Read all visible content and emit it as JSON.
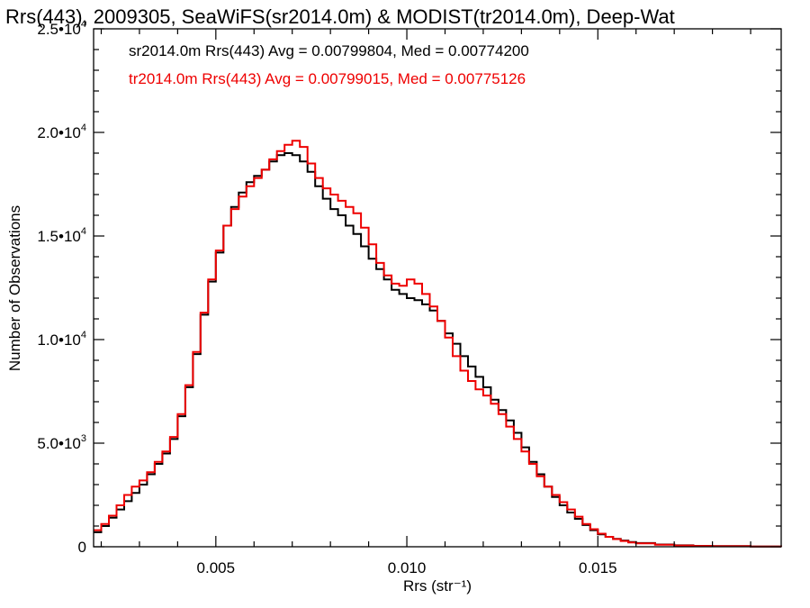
{
  "chart_data": {
    "type": "line",
    "step": true,
    "title": "Rrs(443), 2009305, SeaWiFS(sr2014.0m) & MODIST(tr2014.0m), Deep-Wat",
    "xlabel": "Rrs (str⁻¹)",
    "ylabel": "Number of Observations",
    "xlim": [
      0.0018,
      0.0198
    ],
    "ylim": [
      0,
      25000
    ],
    "x_ticks": [
      {
        "value": 0.005,
        "label": "0.005"
      },
      {
        "value": 0.01,
        "label": "0.010"
      },
      {
        "value": 0.015,
        "label": "0.015"
      }
    ],
    "y_ticks": [
      {
        "value": 0,
        "mantissa": "0",
        "exponent": ""
      },
      {
        "value": 5000,
        "mantissa": "5.0•10",
        "exponent": "3"
      },
      {
        "value": 10000,
        "mantissa": "1.0•10",
        "exponent": "4"
      },
      {
        "value": 15000,
        "mantissa": "1.5•10",
        "exponent": "4"
      },
      {
        "value": 20000,
        "mantissa": "2.0•10",
        "exponent": "4"
      },
      {
        "value": 25000,
        "mantissa": "2.5•10",
        "exponent": "4"
      }
    ],
    "annotations": [
      {
        "text": "sr2014.0m Rrs(443) Avg = 0.00799804, Med = 0.00774200",
        "color": "#000000"
      },
      {
        "text": "tr2014.0m Rrs(443) Avg = 0.00799015, Med = 0.00775126",
        "color": "#ee0000"
      }
    ],
    "series": [
      {
        "color": "#000000",
        "x": [
          0.0018,
          0.002,
          0.0022,
          0.0024,
          0.0026,
          0.0028,
          0.003,
          0.0032,
          0.0034,
          0.0036,
          0.0038,
          0.004,
          0.0042,
          0.0044,
          0.0046,
          0.0048,
          0.005,
          0.0052,
          0.0054,
          0.0056,
          0.0058,
          0.006,
          0.0062,
          0.0064,
          0.0066,
          0.0068,
          0.007,
          0.0072,
          0.0074,
          0.0076,
          0.0078,
          0.008,
          0.0082,
          0.0084,
          0.0086,
          0.0088,
          0.009,
          0.0092,
          0.0094,
          0.0096,
          0.0098,
          0.01,
          0.0102,
          0.0104,
          0.0106,
          0.0108,
          0.011,
          0.0112,
          0.0114,
          0.0116,
          0.0118,
          0.012,
          0.0122,
          0.0124,
          0.0126,
          0.0128,
          0.013,
          0.0132,
          0.0134,
          0.0136,
          0.0138,
          0.014,
          0.0142,
          0.0144,
          0.0146,
          0.0148,
          0.015,
          0.0152,
          0.0154,
          0.0156,
          0.0158,
          0.016,
          0.0165,
          0.017,
          0.0175,
          0.018,
          0.019,
          0.0198
        ],
        "values": [
          700,
          1000,
          1400,
          1800,
          2200,
          2600,
          3000,
          3500,
          4000,
          4500,
          5200,
          6300,
          7700,
          9300,
          11200,
          12800,
          14200,
          15500,
          16400,
          17100,
          17600,
          17900,
          18200,
          18600,
          18900,
          19000,
          18900,
          18600,
          18100,
          17400,
          16800,
          16300,
          16000,
          15500,
          15100,
          14500,
          13900,
          13400,
          12900,
          12400,
          12200,
          12000,
          11900,
          11700,
          11400,
          10900,
          10300,
          9800,
          9200,
          8700,
          8200,
          7700,
          7100,
          6600,
          6100,
          5500,
          4800,
          4100,
          3500,
          2900,
          2400,
          2000,
          1650,
          1350,
          1050,
          800,
          600,
          480,
          380,
          300,
          230,
          180,
          110,
          70,
          45,
          30,
          15,
          10
        ]
      },
      {
        "color": "#ee0000",
        "x": [
          0.0018,
          0.002,
          0.0022,
          0.0024,
          0.0026,
          0.0028,
          0.003,
          0.0032,
          0.0034,
          0.0036,
          0.0038,
          0.004,
          0.0042,
          0.0044,
          0.0046,
          0.0048,
          0.005,
          0.0052,
          0.0054,
          0.0056,
          0.0058,
          0.006,
          0.0062,
          0.0064,
          0.0066,
          0.0068,
          0.007,
          0.0072,
          0.0074,
          0.0076,
          0.0078,
          0.008,
          0.0082,
          0.0084,
          0.0086,
          0.0088,
          0.009,
          0.0092,
          0.0094,
          0.0096,
          0.0098,
          0.01,
          0.0102,
          0.0104,
          0.0106,
          0.0108,
          0.011,
          0.0112,
          0.0114,
          0.0116,
          0.0118,
          0.012,
          0.0122,
          0.0124,
          0.0126,
          0.0128,
          0.013,
          0.0132,
          0.0134,
          0.0136,
          0.0138,
          0.014,
          0.0142,
          0.0144,
          0.0146,
          0.0148,
          0.015,
          0.0152,
          0.0154,
          0.0156,
          0.0158,
          0.016,
          0.0165,
          0.017,
          0.0175,
          0.018,
          0.019,
          0.0198
        ],
        "values": [
          800,
          1100,
          1500,
          2000,
          2500,
          2900,
          3200,
          3600,
          4100,
          4600,
          5300,
          6400,
          7800,
          9400,
          11300,
          12900,
          14300,
          15500,
          16300,
          16900,
          17400,
          17800,
          18200,
          18700,
          19100,
          19400,
          19600,
          19300,
          18500,
          17800,
          17300,
          17000,
          16700,
          16400,
          16100,
          15400,
          14600,
          13700,
          13100,
          12700,
          12600,
          12900,
          12700,
          12200,
          11600,
          10900,
          10100,
          9200,
          8500,
          8000,
          7600,
          7300,
          6900,
          6400,
          5800,
          5200,
          4600,
          4000,
          3400,
          2900,
          2500,
          2150,
          1800,
          1450,
          1100,
          850,
          630,
          480,
          370,
          280,
          210,
          160,
          95,
          60,
          40,
          25,
          12,
          8
        ]
      }
    ]
  }
}
